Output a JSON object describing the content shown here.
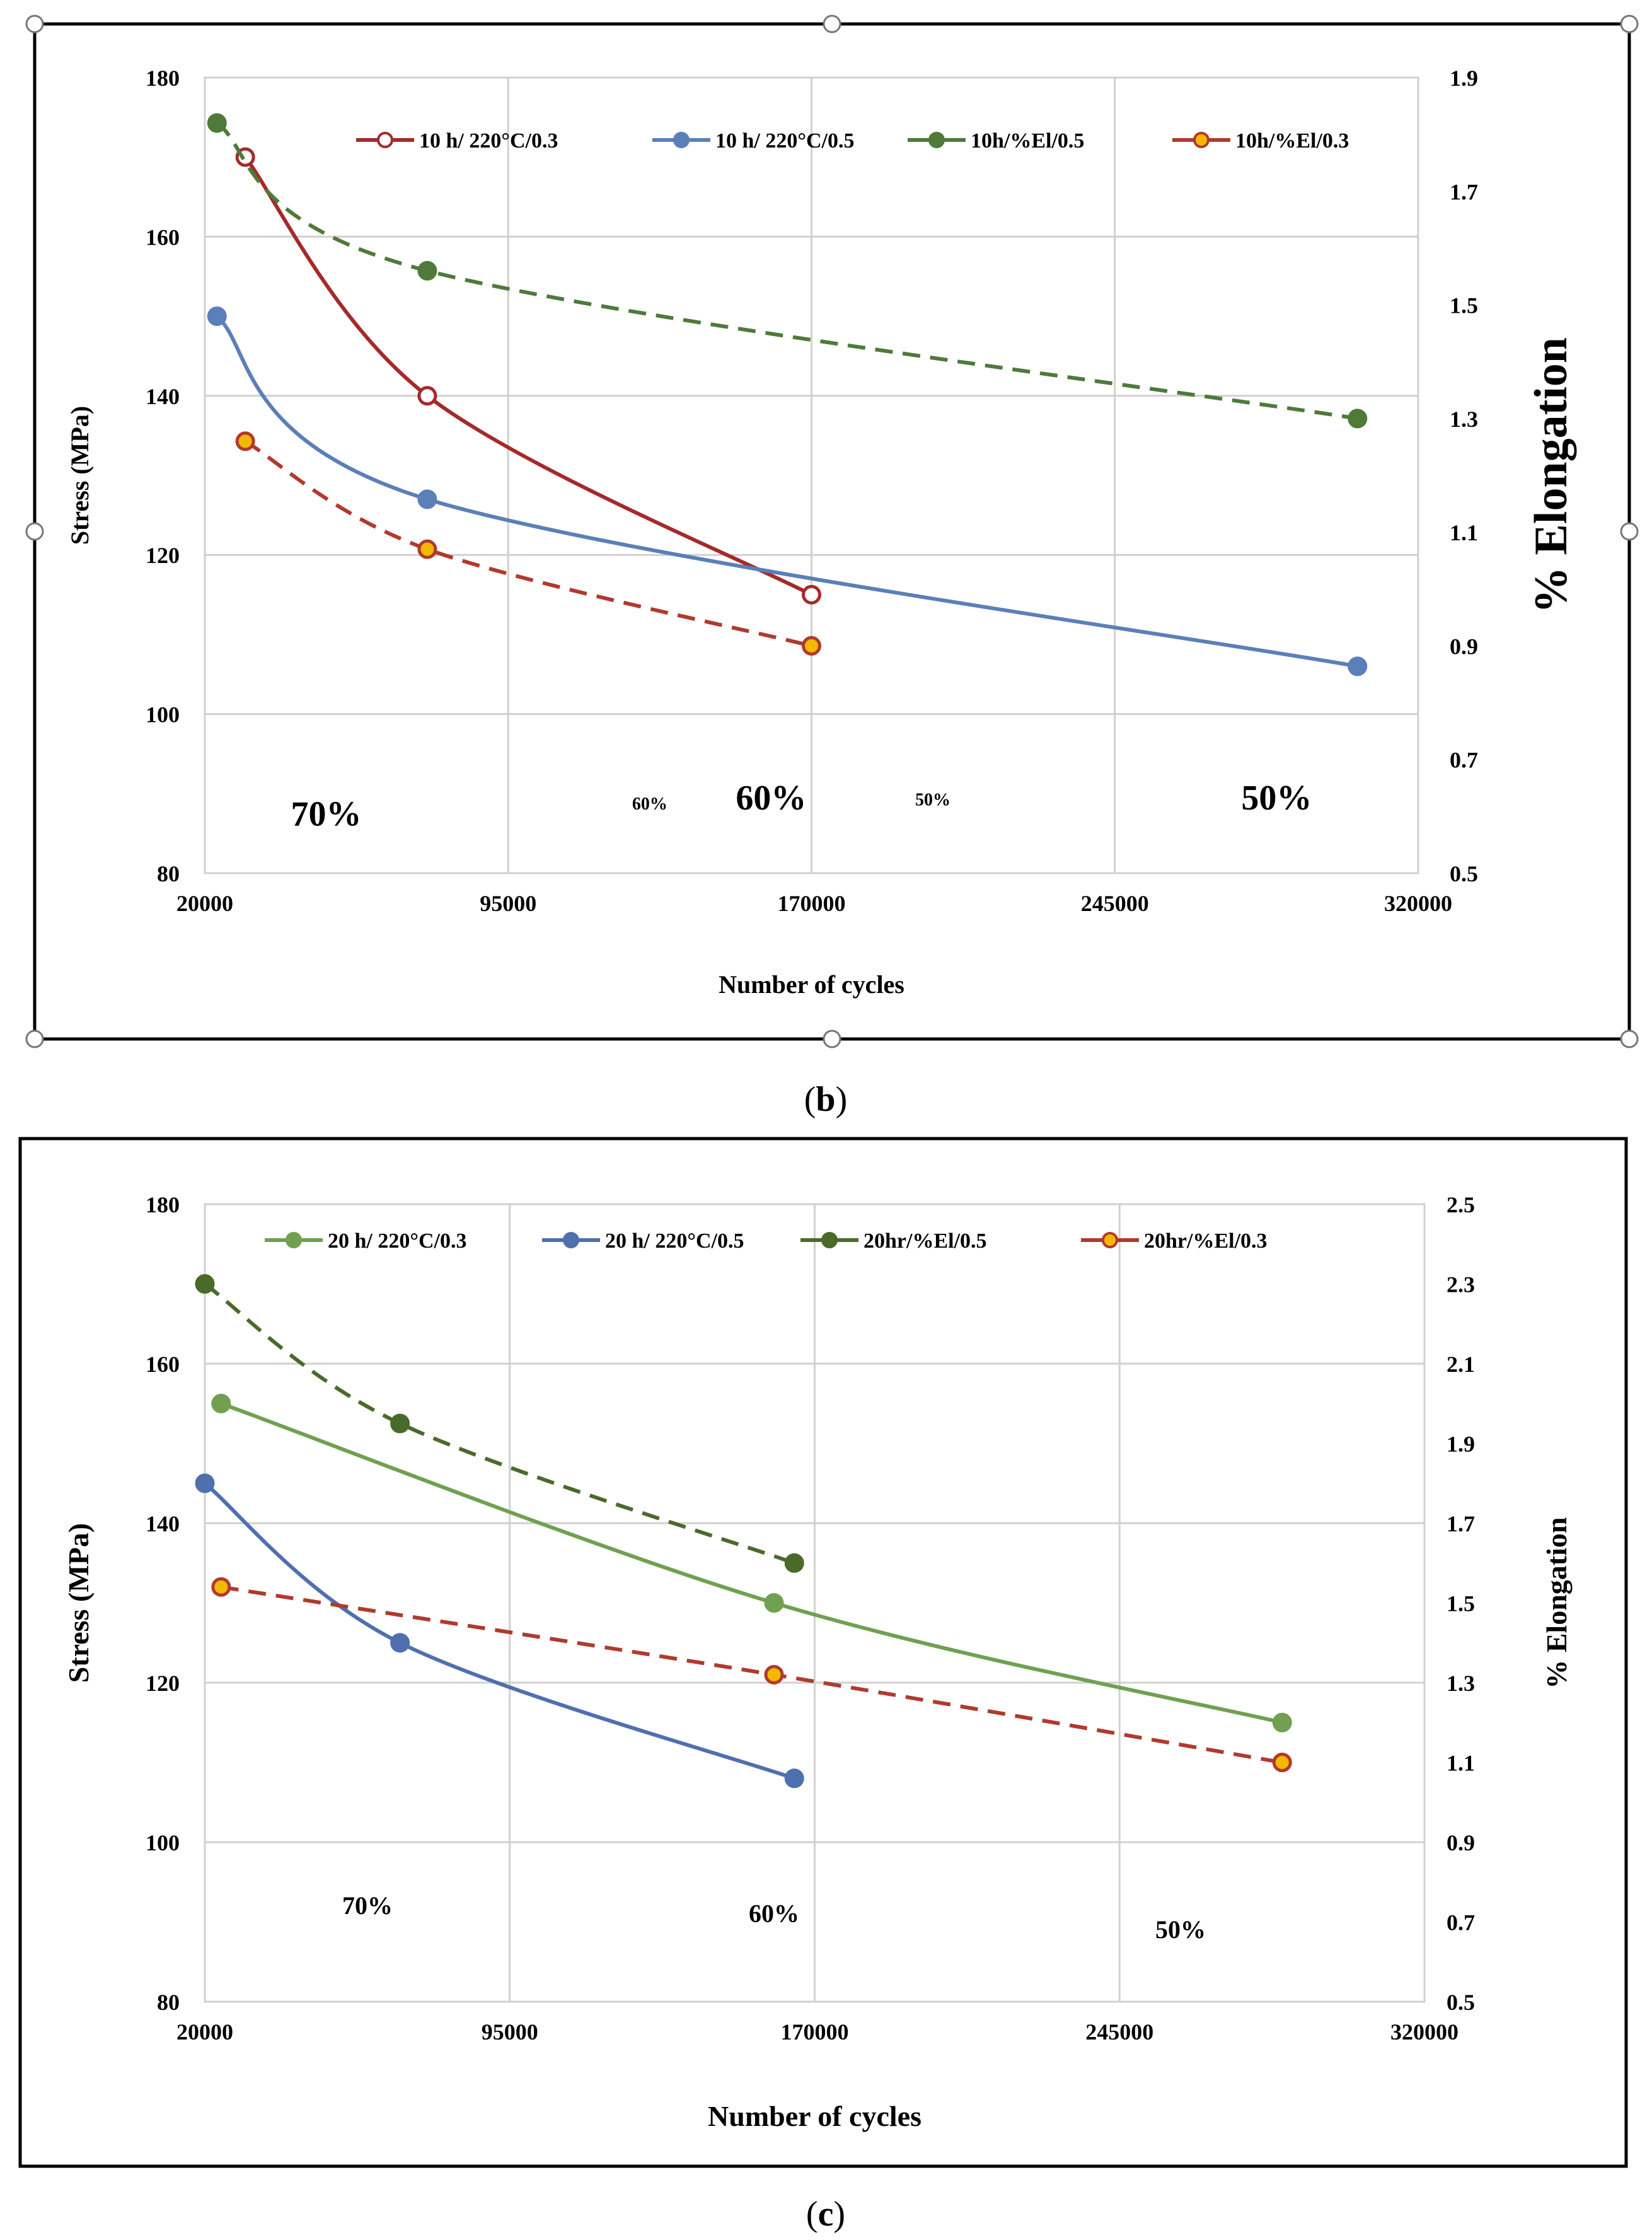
{
  "figure_b": {
    "caption_open": "(",
    "caption_letter": "b",
    "caption_close": ")"
  },
  "figure_c": {
    "caption_open": "(",
    "caption_letter": "c",
    "caption_close": ")"
  },
  "chart_data": [
    {
      "type": "line",
      "panel": "b",
      "title": "",
      "xlabel": "Number of cycles",
      "ylabel": "Stress (MPa)",
      "y2label": "% Elongation",
      "xlim": [
        20000,
        320000
      ],
      "ylim": [
        80,
        180
      ],
      "y2lim": [
        0.5,
        1.9
      ],
      "x_ticks": [
        "20000",
        "95000",
        "170000",
        "245000",
        "320000"
      ],
      "x_tick_values": [
        20000,
        95000,
        170000,
        245000,
        320000
      ],
      "y_ticks": [
        "80",
        "100",
        "120",
        "140",
        "160",
        "180"
      ],
      "y_tick_values": [
        80,
        100,
        120,
        140,
        160,
        180
      ],
      "y2_ticks": [
        "0.5",
        "0.7",
        "0.9",
        "1.1",
        "1.3",
        "1.5",
        "1.7",
        "1.9"
      ],
      "y2_tick_values": [
        0.5,
        0.7,
        0.9,
        1.1,
        1.3,
        1.5,
        1.7,
        1.9
      ],
      "grid": true,
      "legend_position": "top",
      "series": [
        {
          "name": "10 h/ 220°C/0.3",
          "axis": "left",
          "style": "solid",
          "color": "#A52A2A",
          "marker_fill": "#ffffff",
          "x": [
            30000,
            75000,
            170000
          ],
          "y": [
            170,
            140,
            115
          ]
        },
        {
          "name": "10 h/ 220°C/0.5",
          "axis": "left",
          "style": "solid",
          "color": "#5B7FB8",
          "marker_fill": "#5B7FB8",
          "x": [
            23000,
            75000,
            305000
          ],
          "y": [
            150,
            127,
            106
          ]
        },
        {
          "name": "10h/%El/0.5",
          "axis": "right",
          "style": "dashed",
          "color": "#4E7A3A",
          "marker_fill": "#4E7A3A",
          "x": [
            23000,
            75000,
            305000
          ],
          "y": [
            1.82,
            1.56,
            1.3
          ]
        },
        {
          "name": "10h/%El/0.3",
          "axis": "right",
          "style": "dashed",
          "color": "#B03A2E",
          "marker_fill": "#F5B800",
          "x": [
            30000,
            75000,
            170000
          ],
          "y": [
            1.26,
            1.07,
            0.9
          ]
        }
      ],
      "annotations": [
        {
          "text": "70%",
          "x": 50000,
          "y": 86,
          "size": "large"
        },
        {
          "text": "60%",
          "x": 130000,
          "y": 88,
          "size": "small"
        },
        {
          "text": "60%",
          "x": 160000,
          "y": 88,
          "size": "large"
        },
        {
          "text": "50%",
          "x": 200000,
          "y": 88.5,
          "size": "small"
        },
        {
          "text": "50%",
          "x": 285000,
          "y": 88,
          "size": "large"
        }
      ]
    },
    {
      "type": "line",
      "panel": "c",
      "title": "",
      "xlabel": "Number of cycles",
      "ylabel": "Stress (MPa)",
      "y2label": "% Elongation",
      "xlim": [
        20000,
        320000
      ],
      "ylim": [
        80,
        180
      ],
      "y2lim": [
        0.5,
        2.5
      ],
      "x_ticks": [
        "20000",
        "95000",
        "170000",
        "245000",
        "320000"
      ],
      "x_tick_values": [
        20000,
        95000,
        170000,
        245000,
        320000
      ],
      "y_ticks": [
        "80",
        "100",
        "120",
        "140",
        "160",
        "180"
      ],
      "y_tick_values": [
        80,
        100,
        120,
        140,
        160,
        180
      ],
      "y2_ticks": [
        "0.5",
        "0.7",
        "0.9",
        "1.1",
        "1.3",
        "1.5",
        "1.7",
        "1.9",
        "2.1",
        "2.3",
        "2.5"
      ],
      "y2_tick_values": [
        0.5,
        0.7,
        0.9,
        1.1,
        1.3,
        1.5,
        1.7,
        1.9,
        2.1,
        2.3,
        2.5
      ],
      "grid": true,
      "legend_position": "top",
      "series": [
        {
          "name": "20 h/ 220°C/0.3",
          "axis": "left",
          "style": "solid",
          "color": "#70A050",
          "marker_fill": "#70A050",
          "x": [
            24000,
            160000,
            285000
          ],
          "y": [
            155,
            130,
            115
          ]
        },
        {
          "name": "20 h/ 220°C/0.5",
          "axis": "left",
          "style": "solid",
          "color": "#4F6FAF",
          "marker_fill": "#4F6FAF",
          "x": [
            20000,
            68000,
            165000
          ],
          "y": [
            145,
            125,
            108
          ]
        },
        {
          "name": "20hr/%El/0.5",
          "axis": "right",
          "style": "dashed",
          "color": "#4A6A2A",
          "marker_fill": "#4A6A2A",
          "x": [
            20000,
            68000,
            165000
          ],
          "y": [
            2.3,
            1.95,
            1.6
          ]
        },
        {
          "name": "20hr/%El/0.3",
          "axis": "right",
          "style": "dashed",
          "color": "#B03A2E",
          "marker_fill": "#F5B800",
          "x": [
            24000,
            160000,
            285000
          ],
          "y": [
            1.54,
            1.32,
            1.1
          ]
        }
      ],
      "annotations": [
        {
          "text": "70%",
          "x": 60000,
          "y": 91,
          "size": "medium"
        },
        {
          "text": "60%",
          "x": 160000,
          "y": 90,
          "size": "medium"
        },
        {
          "text": "50%",
          "x": 260000,
          "y": 88,
          "size": "medium"
        }
      ]
    }
  ]
}
